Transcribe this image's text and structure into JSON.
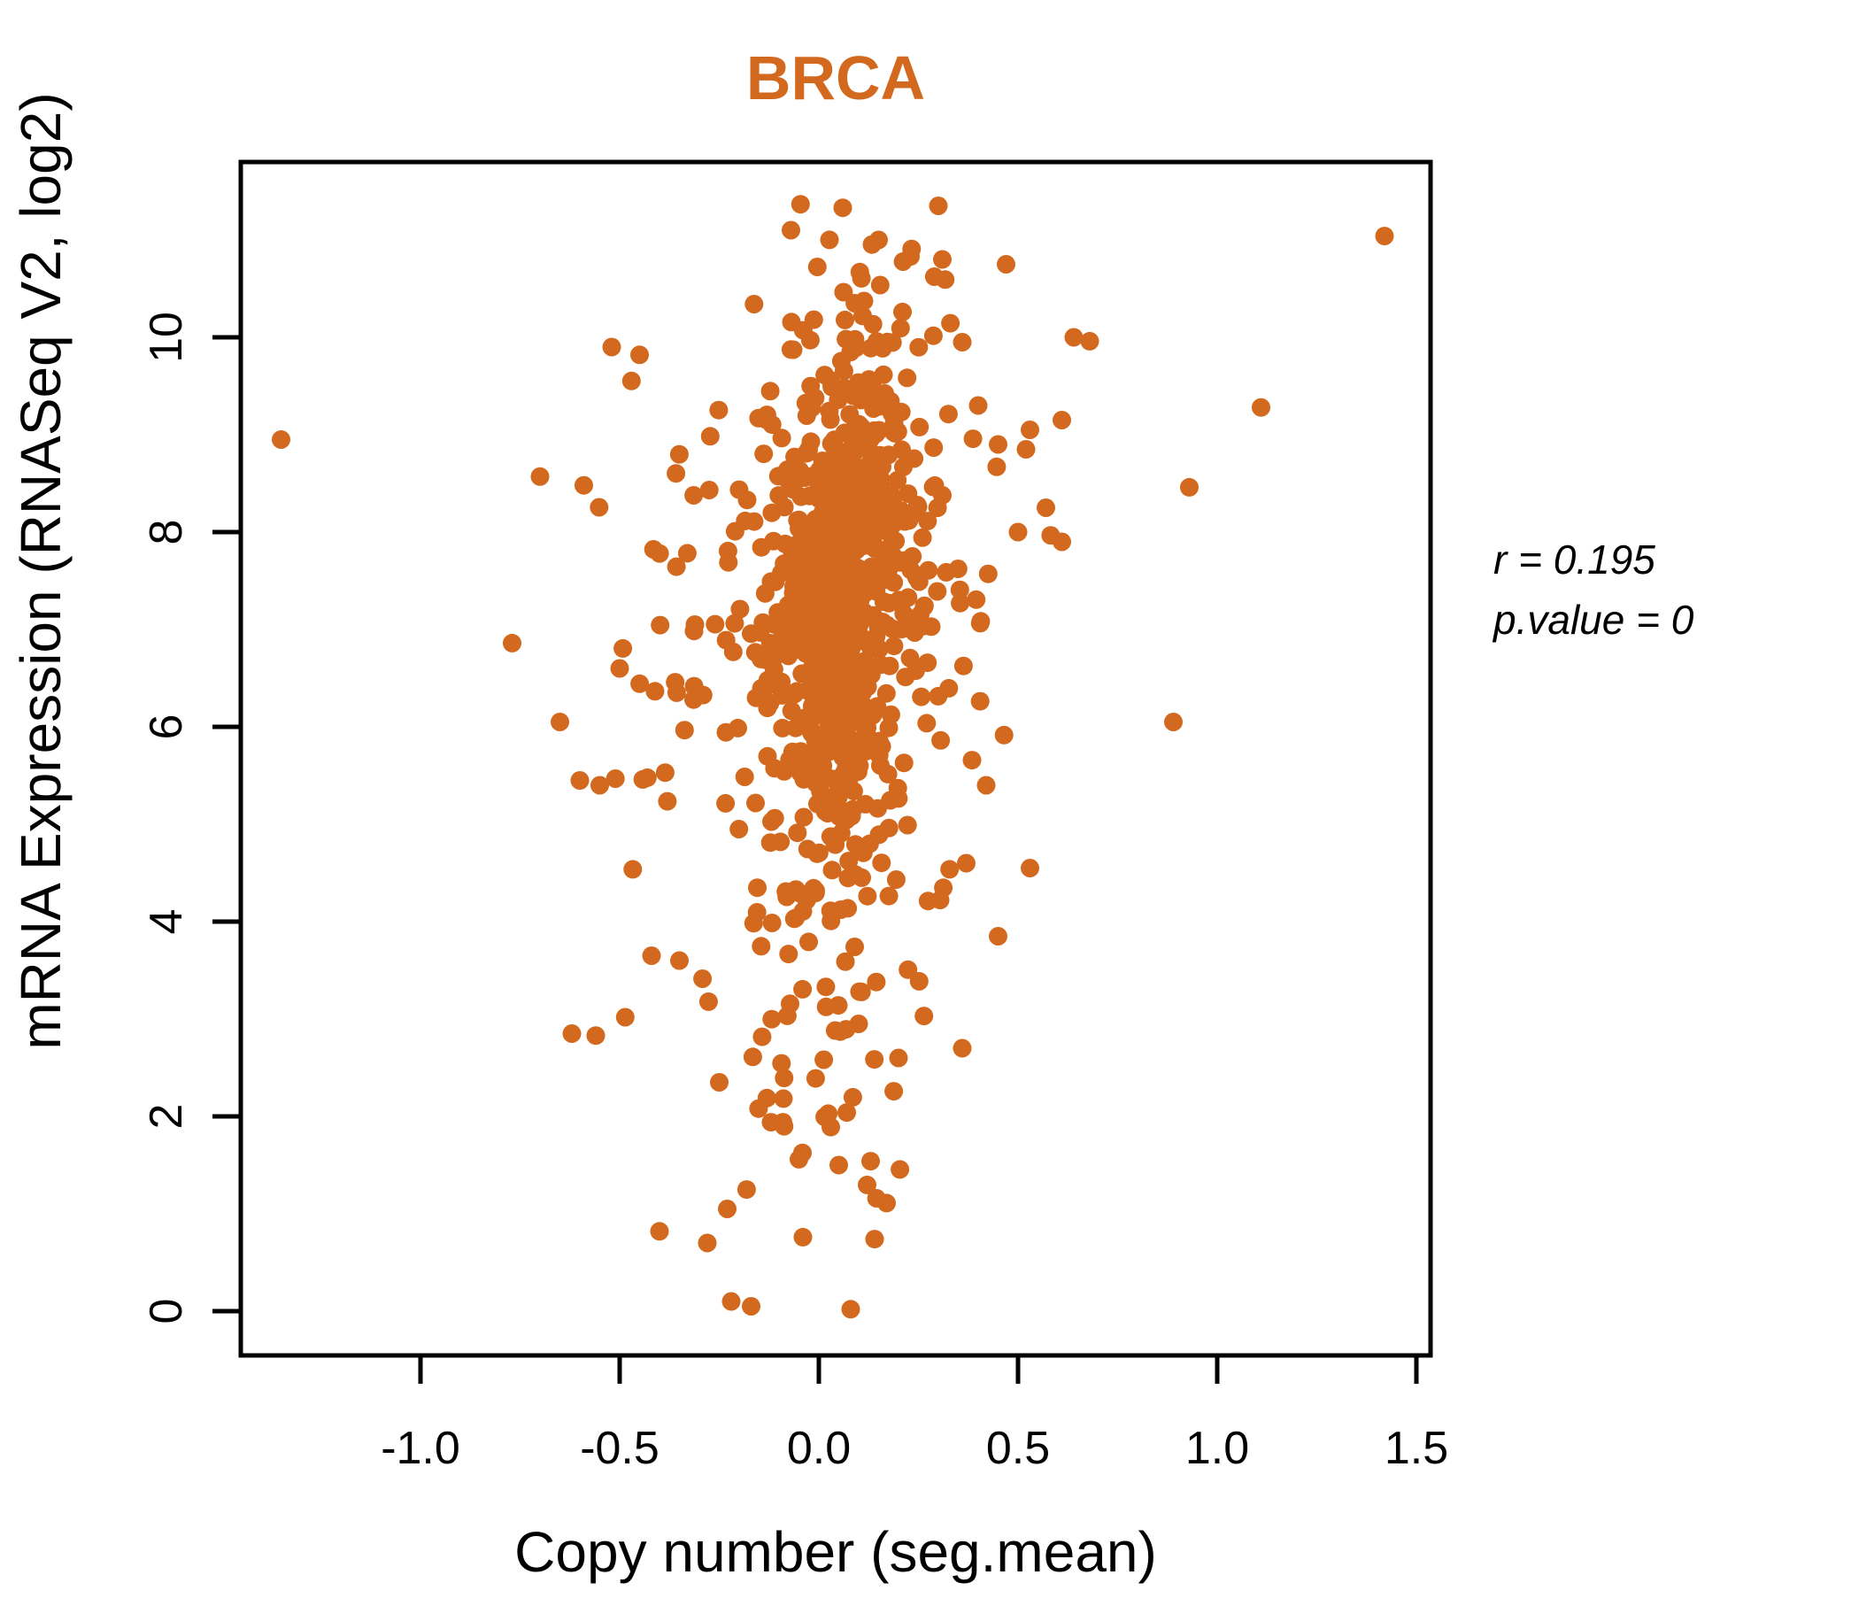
{
  "page": {
    "background": "#ffffff"
  },
  "title": {
    "text": "BRCA",
    "color": "#D2691E"
  },
  "annotation": {
    "line1": "r = 0.195",
    "line2": "p.value = 0",
    "color": "#000000"
  },
  "chart_data": {
    "type": "scatter",
    "title": "BRCA",
    "xlabel": "Copy number (seg.mean)",
    "ylabel": "mRNA Expression (RNASeq V2, log2)",
    "x_tick_values": [
      -1.0,
      -0.5,
      0.0,
      0.5,
      1.0,
      1.5
    ],
    "x_tick_labels": [
      "-1.0",
      "-0.5",
      "0.0",
      "0.5",
      "1.0",
      "1.5"
    ],
    "y_tick_values": [
      0,
      2,
      4,
      6,
      8,
      10
    ],
    "y_tick_labels": [
      "0",
      "2",
      "4",
      "6",
      "8",
      "10"
    ],
    "xlim": [
      -1.45,
      1.54
    ],
    "ylim": [
      -0.45,
      11.8
    ],
    "grid": false,
    "legend": "none",
    "marker": {
      "shape": "circle",
      "color": "#D2691E",
      "radius_px": 10.5
    },
    "stats": {
      "r": 0.195,
      "p_value": 0
    },
    "n_points_approx": 950,
    "cloud_model": {
      "comment": "dense overplotted cloud estimated from pixels; generated deterministically from these params",
      "seed": 20,
      "n": 900,
      "x_mean": 0.055,
      "x_sd_core": 0.085,
      "wide_mean": -0.01,
      "x_sd_wide": 0.22,
      "wide_fraction": 0.32,
      "y_mean": 7.4,
      "y_sd": 1.42,
      "r": 0.195,
      "low_tail_fraction": 0.06,
      "low_tail": {
        "x_mean": 0.0,
        "x_sd": 0.17,
        "y_mean": 3.3,
        "y_sd": 1.05
      },
      "x_clip": [
        -0.78,
        0.72
      ],
      "y_clip": [
        0.35,
        11.38
      ]
    },
    "notable_points": [
      [
        -1.35,
        8.95
      ],
      [
        1.42,
        11.04
      ],
      [
        1.11,
        9.28
      ],
      [
        0.93,
        8.46
      ],
      [
        0.89,
        6.05
      ],
      [
        0.64,
        10.0
      ],
      [
        0.61,
        9.15
      ],
      [
        0.53,
        9.05
      ],
      [
        0.52,
        8.85
      ],
      [
        0.57,
        8.25
      ],
      [
        0.61,
        7.9
      ],
      [
        0.5,
        8.0
      ],
      [
        0.53,
        4.55
      ],
      [
        0.47,
        10.75
      ],
      [
        0.45,
        3.85
      ],
      [
        -0.77,
        6.86
      ],
      [
        -0.7,
        8.57
      ],
      [
        -0.59,
        8.48
      ],
      [
        -0.65,
        6.05
      ],
      [
        -0.62,
        2.85
      ],
      [
        -0.56,
        2.83
      ],
      [
        -0.52,
        9.9
      ],
      [
        -0.45,
        9.82
      ],
      [
        -0.5,
        6.6
      ],
      [
        -0.55,
        5.4
      ],
      [
        -0.6,
        5.45
      ],
      [
        -0.4,
        0.82
      ],
      [
        -0.28,
        0.7
      ],
      [
        -0.23,
        1.05
      ],
      [
        -0.22,
        0.1
      ],
      [
        -0.17,
        0.05
      ],
      [
        0.08,
        0.02
      ],
      [
        -0.04,
        0.76
      ],
      [
        0.14,
        0.74
      ],
      [
        0.3,
        11.35
      ],
      [
        0.06,
        11.33
      ],
      [
        -0.07,
        11.1
      ],
      [
        0.15,
        11.0
      ],
      [
        0.23,
        10.83
      ],
      [
        0.31,
        10.8
      ],
      [
        -0.12,
        1.94
      ],
      [
        -0.09,
        1.94
      ],
      [
        0.03,
        1.89
      ],
      [
        0.07,
        2.04
      ],
      [
        -0.05,
        1.56
      ],
      [
        0.05,
        1.5
      ],
      [
        0.13,
        1.54
      ],
      [
        0.17,
        1.11
      ],
      [
        -0.25,
        2.35
      ],
      [
        0.2,
        2.6
      ],
      [
        0.36,
        2.7
      ],
      [
        0.1,
        2.95
      ],
      [
        -0.35,
        3.6
      ],
      [
        -0.42,
        3.65
      ],
      [
        0.37,
        4.6
      ],
      [
        0.42,
        5.4
      ],
      [
        0.36,
        9.95
      ],
      [
        0.4,
        9.3
      ],
      [
        0.45,
        8.9
      ],
      [
        0.68,
        9.96
      ]
    ]
  }
}
